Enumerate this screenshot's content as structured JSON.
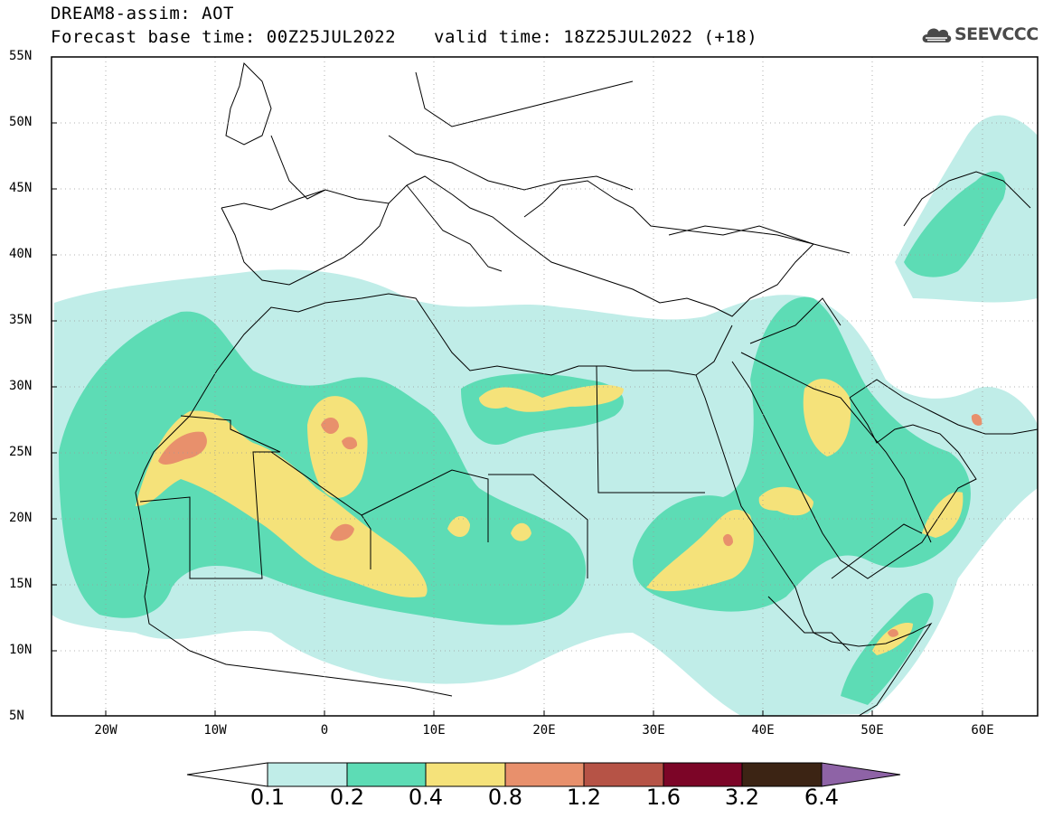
{
  "header": {
    "model_line": "DREAM8-assim: AOT",
    "base_time_line": "Forecast base time: 00Z25JUL2022",
    "valid_time_line": "valid time: 18Z25JUL2022 (+18)"
  },
  "logo": {
    "text": "SEEVCCC"
  },
  "axes": {
    "y_labels": [
      "55N",
      "50N",
      "45N",
      "40N",
      "35N",
      "30N",
      "25N",
      "20N",
      "15N",
      "10N",
      "5N"
    ],
    "x_labels": [
      "20W",
      "10W",
      "0",
      "10E",
      "20E",
      "30E",
      "40E",
      "50E",
      "60E"
    ],
    "lon_range": [
      -25,
      65
    ],
    "lat_range": [
      5,
      55
    ],
    "grid": "dotted"
  },
  "colorbar": {
    "labels": [
      "0.1",
      "0.2",
      "0.4",
      "0.8",
      "1.2",
      "1.6",
      "3.2",
      "6.4"
    ],
    "colors": [
      "#ffffff",
      "#c0ede8",
      "#5ddcb5",
      "#f5e27a",
      "#e8906c",
      "#b65346",
      "#7c0527",
      "#3c2414",
      "#8e63a6"
    ]
  },
  "map": {
    "ocean_color": "#ffffff",
    "border_color": "#000000"
  }
}
